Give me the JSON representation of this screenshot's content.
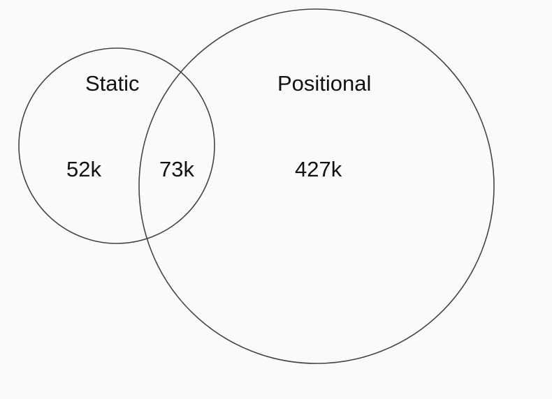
{
  "venn": {
    "sets": [
      {
        "name": "Static"
      },
      {
        "name": "Positional"
      }
    ],
    "regions": {
      "static_only": "52k",
      "overlap": "73k",
      "positional_only": "427k"
    }
  },
  "colors": {
    "background": "#fafafa",
    "stroke": "#444444",
    "text": "#111111"
  }
}
